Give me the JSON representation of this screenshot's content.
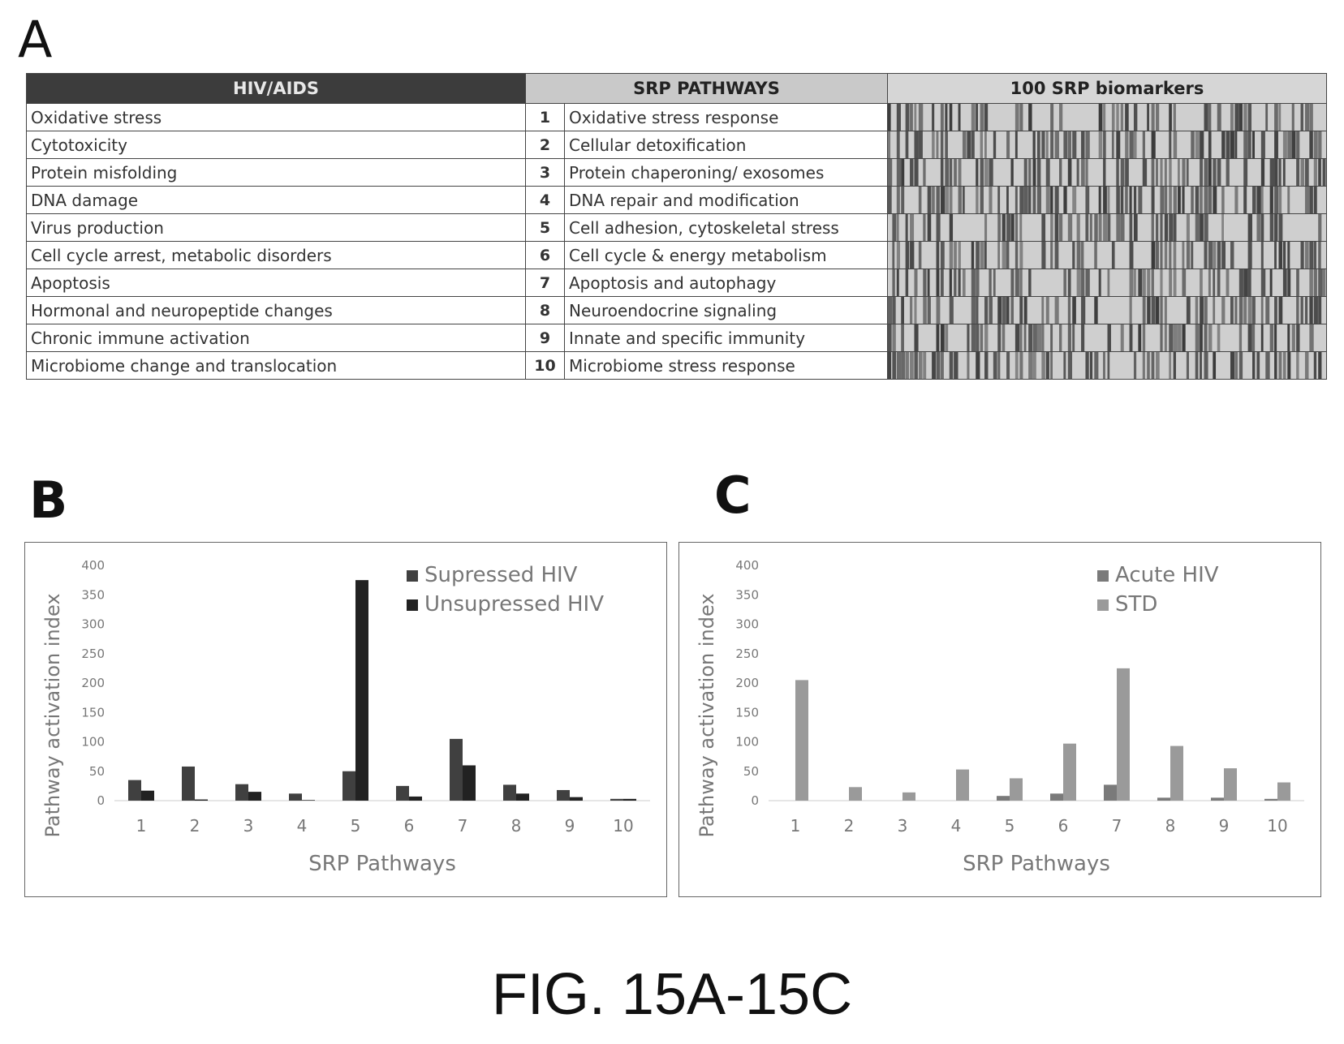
{
  "panels": {
    "a": "A",
    "b": "B",
    "c": "C"
  },
  "table_a": {
    "headers": {
      "hiv": "HIV/AIDS",
      "srp": "SRP PATHWAYS",
      "bio": "100 SRP biomarkers"
    },
    "rows": [
      {
        "hiv": "Oxidative stress",
        "num": "1",
        "srp": "Oxidative stress response"
      },
      {
        "hiv": "Cytotoxicity",
        "num": "2",
        "srp": "Cellular detoxification"
      },
      {
        "hiv": "Protein misfolding",
        "num": "3",
        "srp": "Protein chaperoning/ exosomes"
      },
      {
        "hiv": "DNA damage",
        "num": "4",
        "srp": "DNA repair and modification"
      },
      {
        "hiv": "Virus production",
        "num": "5",
        "srp": "Cell adhesion, cytoskeletal stress"
      },
      {
        "hiv": "Cell cycle arrest, metabolic disorders",
        "num": "6",
        "srp": "Cell cycle & energy metabolism"
      },
      {
        "hiv": "Apoptosis",
        "num": "7",
        "srp": "Apoptosis and autophagy"
      },
      {
        "hiv": "Hormonal and neuropeptide changes",
        "num": "8",
        "srp": "Neuroendocrine signaling"
      },
      {
        "hiv": "Chronic immune activation",
        "num": "9",
        "srp": "Innate and specific immunity"
      },
      {
        "hiv": "Microbiome change and translocation",
        "num": "10",
        "srp": "Microbiome stress response"
      }
    ],
    "heatmap_colors": {
      "dark": "#3a3a3a",
      "light": "#cfcfcf"
    }
  },
  "chart_data": [
    {
      "type": "bar",
      "title": "",
      "xlabel": "SRP Pathways",
      "ylabel": "Pathway activation index",
      "ylim": [
        0,
        400
      ],
      "yticks": [
        "0",
        "50",
        "100",
        "150",
        "200",
        "250",
        "300",
        "350",
        "400"
      ],
      "categories": [
        "1",
        "2",
        "3",
        "4",
        "5",
        "6",
        "7",
        "8",
        "9",
        "10"
      ],
      "series": [
        {
          "name": "Supressed HIV",
          "color": "#404040",
          "values": [
            35,
            58,
            28,
            12,
            50,
            25,
            105,
            27,
            18,
            3
          ]
        },
        {
          "name": "Unsupressed HIV",
          "color": "#222222",
          "values": [
            17,
            2,
            15,
            1,
            375,
            7,
            60,
            12,
            6,
            3
          ]
        }
      ],
      "legend_position": "top-right"
    },
    {
      "type": "bar",
      "title": "",
      "xlabel": "SRP Pathways",
      "ylabel": "Pathway activation index",
      "ylim": [
        0,
        400
      ],
      "yticks": [
        "0",
        "50",
        "100",
        "150",
        "200",
        "250",
        "300",
        "350",
        "400"
      ],
      "categories": [
        "1",
        "2",
        "3",
        "4",
        "5",
        "6",
        "7",
        "8",
        "9",
        "10"
      ],
      "series": [
        {
          "name": "Acute HIV",
          "color": "#7a7a7a",
          "values": [
            0,
            0,
            0,
            0,
            8,
            12,
            27,
            5,
            5,
            3
          ]
        },
        {
          "name": "STD",
          "color": "#9a9a9a",
          "values": [
            205,
            23,
            14,
            53,
            38,
            97,
            225,
            93,
            55,
            31
          ]
        }
      ],
      "legend_position": "top-right"
    }
  ],
  "caption": "FIG. 15A-15C"
}
